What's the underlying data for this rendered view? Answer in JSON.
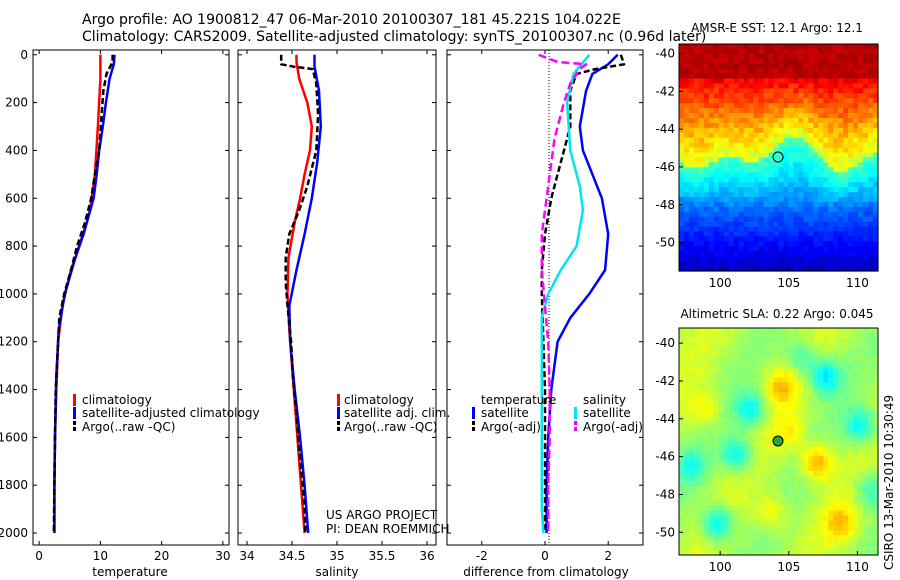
{
  "header": {
    "line1": "Argo profile: AO 1900812_47 06-Mar-2010 20100307_181 45.221S 104.022E",
    "line2": "Climatology: CARS2009. Satellite-adjusted climatology: synTS_20100307.nc (0.96d later)"
  },
  "credits": {
    "project": "US ARGO PROJECT",
    "pi": "PI: DEAN ROEMMICH",
    "stamp": "CSIRO 13-Mar-2010 10:30:49"
  },
  "colors": {
    "climatology": "#ff0000",
    "satellite": "#0000ff",
    "argo": "#000000",
    "sat_sal": "#00e5ee",
    "argo_sal": "#ff00ff"
  },
  "chart_data": [
    {
      "type": "line",
      "xlabel": "temperature",
      "xlim": [
        -1,
        31
      ],
      "xticks": [
        "0",
        "10",
        "20",
        "30"
      ],
      "xtick_values": [
        0,
        10,
        20,
        30
      ],
      "ylim": [
        2050,
        -20
      ],
      "yticks": [
        "0",
        "200",
        "400",
        "600",
        "800",
        "1000",
        "1200",
        "1400",
        "1600",
        "1800",
        "2000"
      ],
      "legend": [
        "climatology",
        "satellite-adjusted climatology",
        "Argo(..raw -QC)"
      ],
      "series": [
        {
          "name": "climatology",
          "color": "red",
          "points": [
            [
              10,
              0
            ],
            [
              10,
              100
            ],
            [
              9.6,
              300
            ],
            [
              9.1,
              500
            ],
            [
              8.3,
              650
            ],
            [
              7.3,
              750
            ],
            [
              5.2,
              900
            ],
            [
              3.8,
              1050
            ],
            [
              3.1,
              1200
            ],
            [
              2.8,
              1400
            ],
            [
              2.6,
              1600
            ],
            [
              2.5,
              1800
            ],
            [
              2.5,
              2000
            ]
          ]
        },
        {
          "name": "satellite-adjusted climatology",
          "color": "blue",
          "points": [
            [
              12.3,
              0
            ],
            [
              12.2,
              40
            ],
            [
              11.5,
              100
            ],
            [
              10.9,
              200
            ],
            [
              10.4,
              300
            ],
            [
              9.8,
              400
            ],
            [
              9.4,
              500
            ],
            [
              8.9,
              600
            ],
            [
              7.8,
              700
            ],
            [
              5.9,
              850
            ],
            [
              4.2,
              1000
            ],
            [
              3.2,
              1150
            ],
            [
              2.8,
              1350
            ],
            [
              2.6,
              1600
            ],
            [
              2.5,
              1800
            ],
            [
              2.5,
              2000
            ]
          ]
        },
        {
          "name": "Argo(..raw -QC)",
          "color": "black",
          "dash": "6,3",
          "points": [
            [
              12,
              0
            ],
            [
              12,
              30
            ],
            [
              11,
              80
            ],
            [
              10.5,
              150
            ],
            [
              10.2,
              250
            ],
            [
              9.8,
              400
            ],
            [
              9.1,
              500
            ],
            [
              8.5,
              600
            ],
            [
              7.5,
              700
            ],
            [
              6.2,
              800
            ],
            [
              5.2,
              900
            ],
            [
              4.1,
              1000
            ],
            [
              3.3,
              1100
            ],
            [
              3,
              1250
            ],
            [
              2.7,
              1400
            ],
            [
              2.6,
              1600
            ],
            [
              2.5,
              1800
            ],
            [
              2.4,
              2000
            ]
          ]
        }
      ]
    },
    {
      "type": "line",
      "xlabel": "salinity",
      "xlim": [
        33.9,
        36.1
      ],
      "xticks": [
        "34",
        "34.5",
        "35",
        "35.5",
        "36"
      ],
      "xtick_values": [
        34,
        34.5,
        35,
        35.5,
        36
      ],
      "ylim": [
        2050,
        -20
      ],
      "legend": [
        "climatology",
        "satellite adj. clim.",
        "Argo(..raw -QC)"
      ],
      "series": [
        {
          "name": "climatology",
          "color": "red",
          "points": [
            [
              34.55,
              0
            ],
            [
              34.55,
              30
            ],
            [
              34.58,
              100
            ],
            [
              34.67,
              200
            ],
            [
              34.72,
              300
            ],
            [
              34.7,
              400
            ],
            [
              34.64,
              500
            ],
            [
              34.59,
              600
            ],
            [
              34.53,
              700
            ],
            [
              34.46,
              850
            ],
            [
              34.45,
              1000
            ],
            [
              34.47,
              1150
            ],
            [
              34.5,
              1300
            ],
            [
              34.54,
              1500
            ],
            [
              34.58,
              1700
            ],
            [
              34.62,
              1900
            ],
            [
              34.64,
              2000
            ]
          ]
        },
        {
          "name": "satellite adj. clim.",
          "color": "blue",
          "points": [
            [
              34.75,
              0
            ],
            [
              34.75,
              50
            ],
            [
              34.8,
              150
            ],
            [
              34.82,
              300
            ],
            [
              34.78,
              450
            ],
            [
              34.72,
              600
            ],
            [
              34.64,
              750
            ],
            [
              34.55,
              900
            ],
            [
              34.47,
              1050
            ],
            [
              34.48,
              1200
            ],
            [
              34.53,
              1400
            ],
            [
              34.59,
              1600
            ],
            [
              34.64,
              1800
            ],
            [
              34.68,
              2000
            ]
          ]
        },
        {
          "name": "Argo(..raw -QC)",
          "color": "black",
          "dash": "6,3",
          "points": [
            [
              34.38,
              0
            ],
            [
              34.38,
              40
            ],
            [
              34.52,
              50
            ],
            [
              34.73,
              60
            ],
            [
              34.77,
              120
            ],
            [
              34.79,
              250
            ],
            [
              34.77,
              400
            ],
            [
              34.67,
              550
            ],
            [
              34.58,
              650
            ],
            [
              34.47,
              750
            ],
            [
              34.43,
              850
            ],
            [
              34.43,
              950
            ],
            [
              34.45,
              1050
            ],
            [
              34.49,
              1200
            ],
            [
              34.51,
              1350
            ],
            [
              34.55,
              1500
            ],
            [
              34.58,
              1650
            ],
            [
              34.62,
              1800
            ],
            [
              34.64,
              1900
            ],
            [
              34.65,
              2000
            ]
          ]
        }
      ]
    },
    {
      "type": "line",
      "xlabel": "difference from climatology",
      "xlim": [
        -3.1,
        3.1
      ],
      "xticks": [
        "-2",
        "0",
        "2"
      ],
      "xtick_values": [
        -2,
        0,
        2
      ],
      "ylim": [
        2050,
        -20
      ],
      "legend_left_title": "temperature",
      "legend_right_title": "salinity",
      "legend": [
        "satellite",
        "Argo(-adj)",
        "satellite",
        "Argo(-adj)"
      ],
      "series": [
        {
          "name": "temperature satellite",
          "color": "blue",
          "points": [
            [
              2.3,
              0
            ],
            [
              2,
              40
            ],
            [
              1.5,
              80
            ],
            [
              1.3,
              150
            ],
            [
              1.1,
              300
            ],
            [
              1.2,
              400
            ],
            [
              1.5,
              500
            ],
            [
              1.8,
              600
            ],
            [
              2,
              750
            ],
            [
              1.9,
              900
            ],
            [
              1.4,
              1000
            ],
            [
              0.8,
              1100
            ],
            [
              0.4,
              1200
            ],
            [
              0.2,
              1400
            ],
            [
              0.1,
              1600
            ],
            [
              0.05,
              1800
            ],
            [
              0.05,
              2000
            ]
          ]
        },
        {
          "name": "temperature Argo(-adj)",
          "color": "black",
          "dash": "6,3",
          "points": [
            [
              2.4,
              0
            ],
            [
              2.5,
              40
            ],
            [
              1.6,
              60
            ],
            [
              1,
              80
            ],
            [
              0.8,
              150
            ],
            [
              0.8,
              300
            ],
            [
              0.6,
              400
            ],
            [
              0.4,
              500
            ],
            [
              0.2,
              600
            ],
            [
              0,
              750
            ],
            [
              -0.1,
              900
            ],
            [
              -0.1,
              1000
            ],
            [
              -0.05,
              1200
            ],
            [
              0,
              1400
            ],
            [
              0,
              1600
            ],
            [
              0,
              1800
            ],
            [
              0,
              2000
            ]
          ]
        },
        {
          "name": "salinity satellite",
          "color": "#00e5ee",
          "points": [
            [
              1.4,
              0
            ],
            [
              0.9,
              80
            ],
            [
              0.7,
              200
            ],
            [
              0.8,
              400
            ],
            [
              1.1,
              550
            ],
            [
              1.2,
              650
            ],
            [
              1,
              800
            ],
            [
              0.5,
              900
            ],
            [
              0.1,
              1000
            ],
            [
              -0.1,
              1100
            ],
            [
              -0.1,
              1300
            ],
            [
              -0.1,
              1500
            ],
            [
              -0.1,
              1700
            ],
            [
              -0.1,
              1900
            ],
            [
              -0.05,
              2000
            ]
          ]
        },
        {
          "name": "salinity Argo(-adj)",
          "color": "#ff00ff",
          "dash": "8,4",
          "points": [
            [
              -0.2,
              0
            ],
            [
              0.4,
              30
            ],
            [
              1.3,
              40
            ],
            [
              1.1,
              60
            ],
            [
              0.8,
              120
            ],
            [
              0.6,
              200
            ],
            [
              0.3,
              350
            ],
            [
              0.1,
              550
            ],
            [
              -0.1,
              750
            ],
            [
              -0.1,
              900
            ],
            [
              0,
              1050
            ],
            [
              0.1,
              1200
            ],
            [
              0.15,
              1400
            ],
            [
              0.15,
              1600
            ],
            [
              0.1,
              1800
            ],
            [
              0.1,
              2000
            ]
          ]
        }
      ]
    },
    {
      "type": "heatmap",
      "title": "AMSR-E SST: 12.1 Argo: 12.1",
      "xlim": [
        97,
        111.5
      ],
      "xticks": [
        "100",
        "105",
        "110"
      ],
      "xtick_values": [
        100,
        105,
        110
      ],
      "ylim": [
        -51.5,
        -39.5
      ],
      "yticks": [
        "-40",
        "-42",
        "-44",
        "-46",
        "-48",
        "-50"
      ],
      "ytick_values": [
        -40,
        -42,
        -44,
        -46,
        -48,
        -50
      ],
      "marker": [
        104.0,
        -45.2
      ]
    },
    {
      "type": "heatmap",
      "title": "Altimetric SLA: 0.22 Argo: 0.045",
      "xlim": [
        97,
        111.5
      ],
      "xticks": [
        "100",
        "105",
        "110"
      ],
      "xtick_values": [
        100,
        105,
        110
      ],
      "ylim": [
        -51.2,
        -39.2
      ],
      "yticks": [
        "-40",
        "-42",
        "-44",
        "-46",
        "-48",
        "-50"
      ],
      "ytick_values": [
        -40,
        -42,
        -44,
        -46,
        -48,
        -50
      ],
      "marker": [
        104.0,
        -45.2
      ]
    }
  ]
}
